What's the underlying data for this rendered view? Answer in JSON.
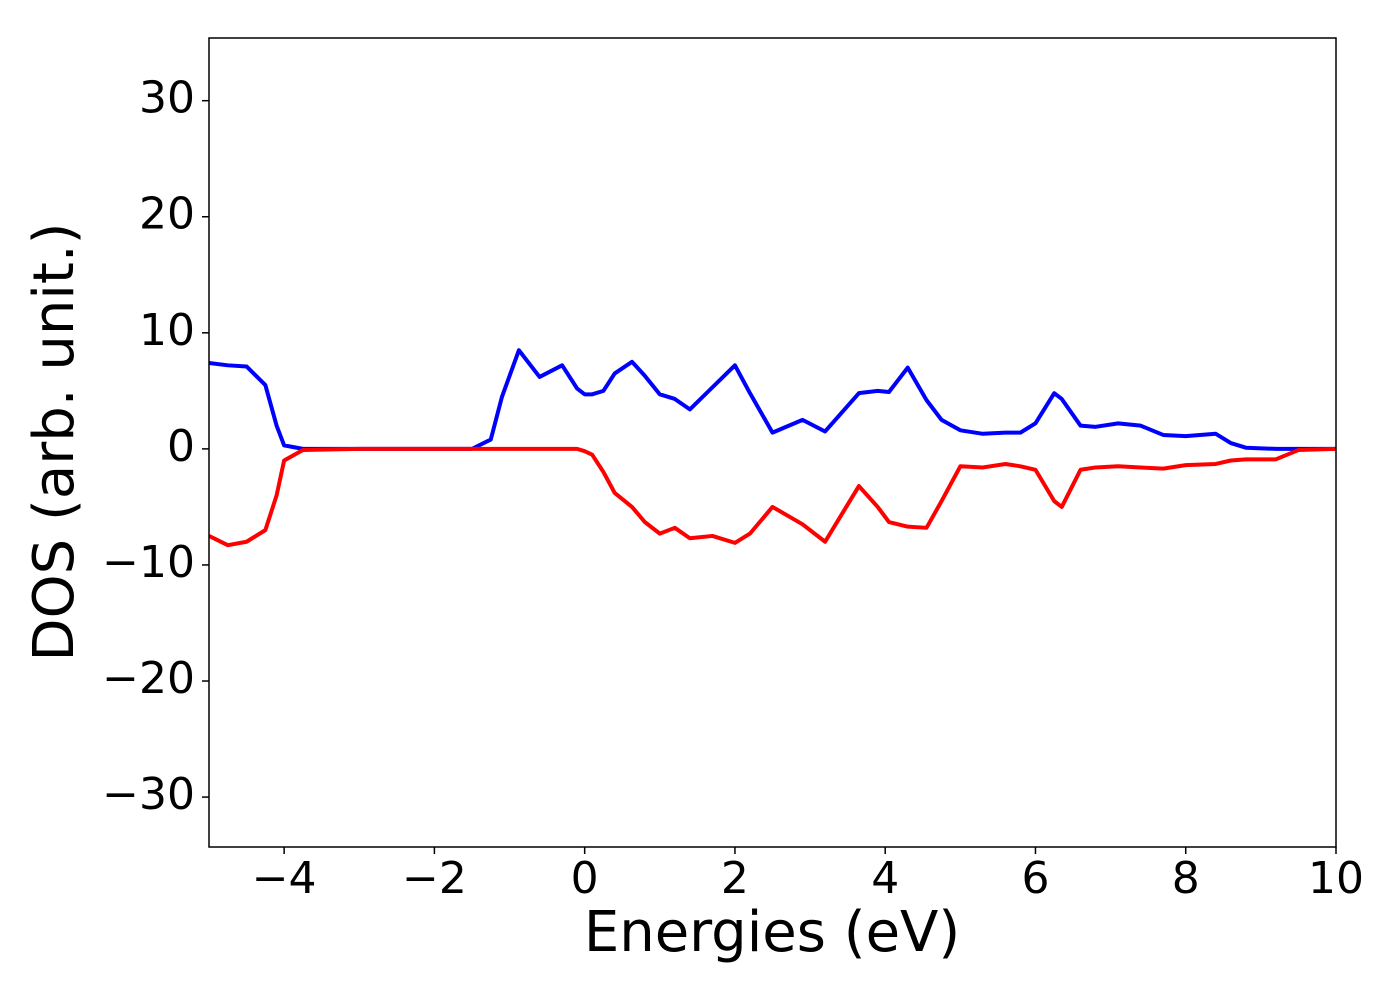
{
  "chart_data": {
    "type": "line",
    "x_label": "Energies (eV)",
    "y_label": "DOS (arb. unit.)",
    "x": [
      -5,
      -4.75,
      -4.5,
      -4.25,
      -4.1,
      -4,
      -3.75,
      -3,
      -2,
      -1.5,
      -1.25,
      -1.1,
      -0.875,
      -0.6,
      -0.3,
      -0.1,
      0,
      0.1,
      0.25,
      0.4,
      0.63,
      0.8,
      1,
      1.2,
      1.4,
      1.7,
      2,
      2.2,
      2.5,
      2.9,
      3.2,
      3.65,
      3.9,
      4.05,
      4.3,
      4.55,
      4.75,
      5,
      5.3,
      5.6,
      5.8,
      6.0,
      6.25,
      6.35,
      6.6,
      6.8,
      7.1,
      7.4,
      7.7,
      8,
      8.4,
      8.6,
      8.8,
      9.2,
      9.5,
      10
    ],
    "series": [
      {
        "color": "#0000ff",
        "values": [
          7.4,
          7.2,
          7.1,
          5.5,
          2.0,
          0.3,
          0,
          0,
          0,
          0,
          0.8,
          4.5,
          8.5,
          6.2,
          7.2,
          5.2,
          4.7,
          4.7,
          5.0,
          6.5,
          7.5,
          6.3,
          4.7,
          4.3,
          3.4,
          5.3,
          7.2,
          4.8,
          1.4,
          2.5,
          1.5,
          4.8,
          5.0,
          4.9,
          7.0,
          4.2,
          2.5,
          1.6,
          1.3,
          1.4,
          1.4,
          2.2,
          4.8,
          4.3,
          2.0,
          1.9,
          2.2,
          2.0,
          1.2,
          1.1,
          1.3,
          0.5,
          0.1,
          0,
          0,
          0
        ]
      },
      {
        "color": "#ff0000",
        "values": [
          -7.5,
          -8.3,
          -8.0,
          -7.0,
          -4.0,
          -1.0,
          -0.1,
          0,
          0,
          0,
          0,
          0,
          0,
          0,
          0,
          0,
          -0.2,
          -0.5,
          -2.0,
          -3.8,
          -5.0,
          -6.3,
          -7.3,
          -6.8,
          -7.7,
          -7.5,
          -8.1,
          -7.3,
          -5.0,
          -6.5,
          -8.0,
          -3.2,
          -5.0,
          -6.3,
          -6.7,
          -6.8,
          -4.5,
          -1.5,
          -1.6,
          -1.3,
          -1.5,
          -1.8,
          -4.5,
          -5.0,
          -1.8,
          -1.6,
          -1.5,
          -1.6,
          -1.7,
          -1.4,
          -1.3,
          -1.0,
          -0.9,
          -0.9,
          -0.1,
          0
        ]
      }
    ],
    "xlim": [
      -5,
      10
    ],
    "xticks": [
      {
        "value": -4,
        "label": "−4"
      },
      {
        "value": -2,
        "label": "−2"
      },
      0,
      2,
      4,
      6,
      8,
      10
    ],
    "ylim": [
      -34.3,
      35.4
    ],
    "yticks": [
      {
        "value": -30,
        "label": "−30"
      },
      {
        "value": -20,
        "label": "−20"
      },
      {
        "value": -10,
        "label": "−10"
      },
      0,
      10,
      20,
      30
    ],
    "grid": false
  }
}
